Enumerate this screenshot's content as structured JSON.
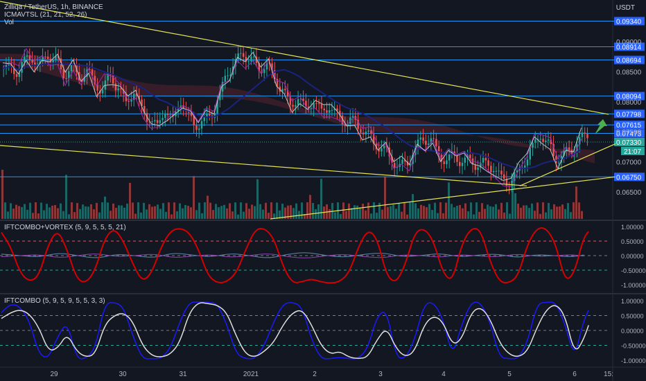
{
  "header": {
    "symbol_line": "Zilliqa / TetherUS, 1h, BINANCE",
    "indicator1": "ICMAVTSL (21, 21, 52, 26)",
    "indicator2": "Vol",
    "currency": "USDT"
  },
  "panes": {
    "pane2_title": "IFTCOMBO+VORTEX (5, 9, 5, 5, 5, 21)",
    "pane3_title": "IFTCOMBO (5, 9, 5, 9, 5, 5, 3, 3)"
  },
  "chart_data": {
    "type": "candlestick",
    "price_ticks": [
      "0.09000",
      "0.08500",
      "0.08000",
      "0.07500",
      "0.07000",
      "0.06500"
    ],
    "horizontal_levels": [
      "0.09340",
      "0.08914",
      "0.08694",
      "0.08094",
      "0.07798",
      "0.07615",
      "0.07473",
      "0.06750"
    ],
    "current_price": "0.07330",
    "countdown": "21:07",
    "x_labels": [
      "29",
      "30",
      "31",
      "2021",
      "2",
      "3",
      "4",
      "5",
      "6",
      "15:"
    ],
    "osc_ticks": [
      "1.00000",
      "0.50000",
      "0.00000",
      "-0.50000",
      "-1.00000"
    ],
    "close_path": [
      0.0855,
      0.0848,
      0.0868,
      0.0872,
      0.086,
      0.0878,
      0.087,
      0.0845,
      0.0858,
      0.084,
      0.085,
      0.0832,
      0.0818,
      0.0845,
      0.0822,
      0.08,
      0.0815,
      0.079,
      0.077,
      0.076,
      0.0785,
      0.077,
      0.08,
      0.0775,
      0.076,
      0.0768,
      0.078,
      0.081,
      0.085,
      0.0865,
      0.088,
      0.087,
      0.0855,
      0.0862,
      0.084,
      0.082,
      0.0795,
      0.0805,
      0.079,
      0.08,
      0.0785,
      0.079,
      0.078,
      0.0765,
      0.077,
      0.0755,
      0.0745,
      0.0728,
      0.072,
      0.0705,
      0.069,
      0.07,
      0.072,
      0.074,
      0.0735,
      0.0715,
      0.07,
      0.0712,
      0.0698,
      0.0705,
      0.0692,
      0.07,
      0.0688,
      0.0675,
      0.0665,
      0.068,
      0.07,
      0.0725,
      0.0745,
      0.073,
      0.0705,
      0.0712,
      0.072,
      0.0735,
      0.0745
    ],
    "osc1_red": [
      0.8,
      0.3,
      -0.6,
      -0.9,
      -0.7,
      0.4,
      0.9,
      0.2,
      -0.8,
      -0.95,
      -0.5,
      0.6,
      0.95,
      0.5,
      -0.3,
      -0.9,
      -0.6,
      0.3,
      0.85,
      0.95,
      0.8,
      0.2,
      -0.7,
      -0.95,
      -0.9,
      -0.6,
      0.2,
      0.9,
      0.95,
      0.6,
      -0.4,
      -0.95,
      -0.9,
      -0.8,
      -0.9,
      -0.95,
      -0.9,
      -0.6,
      0.3,
      0.9,
      0.6,
      -0.7,
      -0.95,
      -0.3,
      0.8,
      0.95,
      0.5,
      -0.6,
      -0.9,
      0.4,
      0.95,
      0.9,
      -0.2,
      -0.9,
      -0.95,
      -0.7,
      0.4,
      0.95,
      0.95,
      0.4,
      -0.9,
      -0.6,
      0.7,
      0.95
    ],
    "osc1_small": [
      0.05,
      0.0,
      -0.05,
      0.1,
      0.0,
      -0.1,
      0.05,
      0.0,
      -0.08,
      0.1,
      0.02,
      -0.05,
      0.08,
      0.0,
      -0.1,
      0.05,
      0.12,
      0.0,
      -0.06,
      0.05,
      0.1,
      -0.04,
      0.0,
      0.08,
      -0.05,
      0.02,
      0.06,
      -0.08,
      0.04,
      0.0,
      -0.05,
      0.1
    ],
    "osc2_white": [
      0.4,
      0.6,
      0.7,
      0.55,
      0.1,
      -0.7,
      -0.6,
      -0.1,
      -0.7,
      -0.9,
      -0.8,
      0.2,
      0.5,
      0.6,
      0.3,
      -0.5,
      -0.85,
      -0.9,
      -0.8,
      -0.4,
      0.6,
      0.95,
      0.9,
      0.85,
      0.6,
      -0.2,
      -0.8,
      -0.9,
      -0.7,
      -0.4,
      0.2,
      0.6,
      0.7,
      0.2,
      -0.5,
      -0.8,
      -0.7,
      -0.9,
      -0.95,
      -0.9,
      -0.3,
      0.1,
      -0.6,
      -0.9,
      -0.7,
      0.2,
      0.5,
      0.3,
      -0.5,
      -0.3,
      0.6,
      0.8,
      0.4,
      -0.4,
      -0.8,
      -0.9,
      -0.7,
      0.1,
      0.7,
      0.9,
      0.5,
      -0.8,
      -0.3,
      0.65
    ],
    "osc2_blue": [
      0.6,
      0.9,
      0.8,
      0.3,
      -0.8,
      -0.95,
      -0.2,
      0.3,
      -0.95,
      -0.95,
      -0.6,
      0.9,
      0.95,
      0.8,
      -0.2,
      -0.95,
      -0.95,
      -0.95,
      -0.6,
      0.3,
      0.95,
      0.95,
      0.95,
      0.9,
      0.2,
      -0.8,
      -0.95,
      -0.95,
      -0.5,
      0.3,
      0.9,
      0.95,
      0.8,
      -0.3,
      -0.95,
      -0.95,
      -0.9,
      -0.95,
      -0.95,
      -0.6,
      0.5,
      0.7,
      -0.9,
      -0.95,
      -0.3,
      0.9,
      0.95,
      0.4,
      -0.9,
      0.2,
      0.95,
      0.95,
      0.3,
      -0.9,
      -0.95,
      -0.95,
      -0.4,
      0.9,
      0.95,
      0.95,
      0.2,
      -0.95,
      0.4,
      0.95
    ]
  }
}
